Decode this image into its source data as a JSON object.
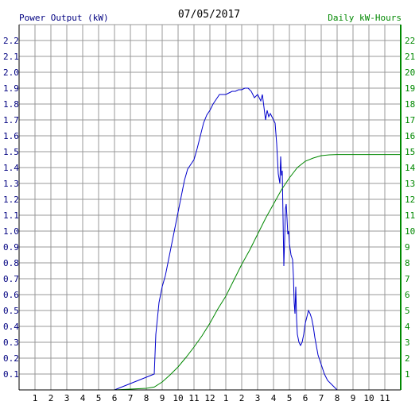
{
  "chart_data": {
    "type": "line",
    "title": "07/05/2017",
    "left_axis_label": "Power Output (kW)",
    "right_axis_label": "Daily kW-Hours",
    "colors": {
      "power": "#0000cc",
      "energy": "#008800",
      "grid": "#999999",
      "left_text": "#000080",
      "right_text": "#008800"
    },
    "x_ticks": [
      "1",
      "2",
      "3",
      "4",
      "5",
      "6",
      "7",
      "8",
      "9",
      "10",
      "11",
      "12",
      "1",
      "2",
      "3",
      "4",
      "5",
      "6",
      "7",
      "8",
      "9",
      "10",
      "11"
    ],
    "x_range_hours": [
      0,
      24
    ],
    "left_ticks": [
      "0.1",
      "0.2",
      "0.3",
      "0.4",
      "0.5",
      "0.6",
      "0.7",
      "0.8",
      "0.9",
      "1.0",
      "1.1",
      "1.2",
      "1.3",
      "1.4",
      "1.5",
      "1.6",
      "1.7",
      "1.8",
      "1.9",
      "2.0",
      "2.1",
      "2.2"
    ],
    "left_range": [
      0,
      2.3
    ],
    "right_ticks": [
      "1",
      "2",
      "3",
      "4",
      "5",
      "6",
      "7",
      "8",
      "9",
      "10",
      "11",
      "12",
      "13",
      "14",
      "15",
      "16",
      "17",
      "18",
      "19",
      "20",
      "21",
      "22"
    ],
    "right_range": [
      0,
      23
    ],
    "grid": true,
    "series": [
      {
        "key": "power",
        "axis": "left",
        "points": [
          [
            6.0,
            0.0
          ],
          [
            6.5,
            0.02
          ],
          [
            7.0,
            0.04
          ],
          [
            7.5,
            0.06
          ],
          [
            8.0,
            0.08
          ],
          [
            8.5,
            0.1
          ],
          [
            8.6,
            0.35
          ],
          [
            8.8,
            0.55
          ],
          [
            9.0,
            0.65
          ],
          [
            9.2,
            0.72
          ],
          [
            9.4,
            0.82
          ],
          [
            9.6,
            0.92
          ],
          [
            9.8,
            1.02
          ],
          [
            10.0,
            1.12
          ],
          [
            10.2,
            1.22
          ],
          [
            10.4,
            1.32
          ],
          [
            10.6,
            1.39
          ],
          [
            10.8,
            1.42
          ],
          [
            11.0,
            1.45
          ],
          [
            11.2,
            1.52
          ],
          [
            11.4,
            1.6
          ],
          [
            11.6,
            1.68
          ],
          [
            11.8,
            1.73
          ],
          [
            12.0,
            1.76
          ],
          [
            12.2,
            1.8
          ],
          [
            12.4,
            1.83
          ],
          [
            12.6,
            1.86
          ],
          [
            12.8,
            1.86
          ],
          [
            13.0,
            1.86
          ],
          [
            13.2,
            1.87
          ],
          [
            13.4,
            1.88
          ],
          [
            13.6,
            1.88
          ],
          [
            13.8,
            1.89
          ],
          [
            14.0,
            1.89
          ],
          [
            14.2,
            1.9
          ],
          [
            14.4,
            1.9
          ],
          [
            14.6,
            1.88
          ],
          [
            14.8,
            1.84
          ],
          [
            15.0,
            1.86
          ],
          [
            15.2,
            1.82
          ],
          [
            15.3,
            1.86
          ],
          [
            15.4,
            1.78
          ],
          [
            15.5,
            1.7
          ],
          [
            15.6,
            1.76
          ],
          [
            15.7,
            1.72
          ],
          [
            15.8,
            1.74
          ],
          [
            16.0,
            1.7
          ],
          [
            16.1,
            1.68
          ],
          [
            16.2,
            1.55
          ],
          [
            16.3,
            1.36
          ],
          [
            16.4,
            1.3
          ],
          [
            16.45,
            1.47
          ],
          [
            16.5,
            1.35
          ],
          [
            16.55,
            1.38
          ],
          [
            16.6,
            1.08
          ],
          [
            16.65,
            0.78
          ],
          [
            16.7,
            0.95
          ],
          [
            16.75,
            1.14
          ],
          [
            16.8,
            1.17
          ],
          [
            16.85,
            1.08
          ],
          [
            16.9,
            0.98
          ],
          [
            16.95,
            1.0
          ],
          [
            17.0,
            0.92
          ],
          [
            17.1,
            0.85
          ],
          [
            17.2,
            0.82
          ],
          [
            17.25,
            0.72
          ],
          [
            17.3,
            0.55
          ],
          [
            17.35,
            0.48
          ],
          [
            17.4,
            0.65
          ],
          [
            17.45,
            0.45
          ],
          [
            17.5,
            0.35
          ],
          [
            17.6,
            0.3
          ],
          [
            17.7,
            0.28
          ],
          [
            17.8,
            0.3
          ],
          [
            17.9,
            0.35
          ],
          [
            18.0,
            0.42
          ],
          [
            18.1,
            0.46
          ],
          [
            18.2,
            0.5
          ],
          [
            18.3,
            0.48
          ],
          [
            18.4,
            0.45
          ],
          [
            18.5,
            0.4
          ],
          [
            18.6,
            0.33
          ],
          [
            18.8,
            0.22
          ],
          [
            19.0,
            0.16
          ],
          [
            19.2,
            0.1
          ],
          [
            19.4,
            0.06
          ],
          [
            19.6,
            0.04
          ],
          [
            19.8,
            0.02
          ],
          [
            20.0,
            0.0
          ]
        ]
      },
      {
        "key": "energy",
        "axis": "right",
        "points": [
          [
            6.0,
            0.0
          ],
          [
            7.0,
            0.05
          ],
          [
            8.0,
            0.1
          ],
          [
            8.5,
            0.18
          ],
          [
            9.0,
            0.5
          ],
          [
            9.5,
            0.95
          ],
          [
            10.0,
            1.45
          ],
          [
            10.5,
            2.05
          ],
          [
            11.0,
            2.7
          ],
          [
            11.5,
            3.4
          ],
          [
            12.0,
            4.2
          ],
          [
            12.5,
            5.1
          ],
          [
            13.0,
            5.9
          ],
          [
            13.5,
            6.9
          ],
          [
            14.0,
            7.9
          ],
          [
            14.5,
            8.8
          ],
          [
            15.0,
            9.8
          ],
          [
            15.5,
            10.8
          ],
          [
            16.0,
            11.7
          ],
          [
            16.5,
            12.6
          ],
          [
            17.0,
            13.35
          ],
          [
            17.5,
            14.0
          ],
          [
            18.0,
            14.4
          ],
          [
            18.5,
            14.6
          ],
          [
            19.0,
            14.75
          ],
          [
            19.5,
            14.8
          ],
          [
            20.0,
            14.82
          ],
          [
            24.0,
            14.82
          ]
        ]
      }
    ]
  }
}
